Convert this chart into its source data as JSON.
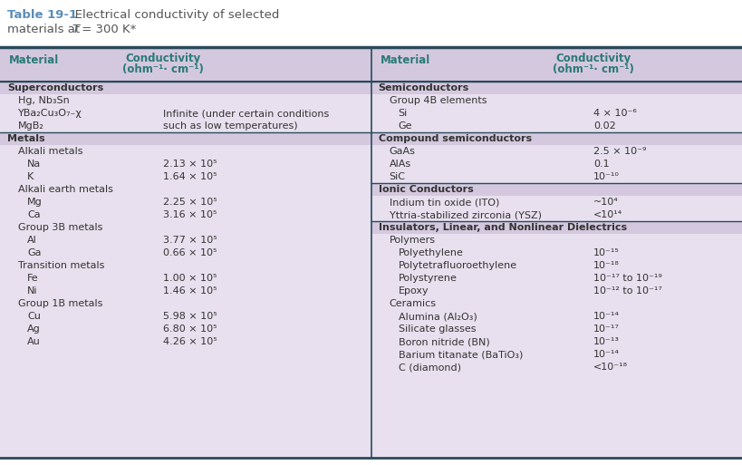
{
  "title_bold": "Table 19-1",
  "title_rest": "   Electrical conductivity of selected",
  "title_line2_pre": "materials at ",
  "title_italic": "T",
  "title_line2_post": " = 300 K*",
  "bg_color": "#e8e0ee",
  "header_bg": "#d4c8de",
  "section_header_bg": "#d4c8de",
  "row_bg": "#e8e0ee",
  "teal_color": "#2a7a78",
  "title_blue": "#5b8db8",
  "border_top_color": "#2a4a5a",
  "border_color": "#8a9aaa",
  "text_color": "#333333",
  "white_bg": "#ffffff",
  "left_col": {
    "header_material": "Material",
    "header_conductivity_line1": "Conductivity",
    "header_conductivity_line2": "(ohm⁻¹· cm⁻¹)",
    "sections": [
      {
        "name": "Superconductors",
        "entries": [
          {
            "material": "Hg, Nb₃Sn",
            "conductivity": "",
            "indent": 1,
            "cond_note": ""
          },
          {
            "material": "YBa₂Cu₃O₇₋χ",
            "conductivity": "Infinite (under certain conditions",
            "indent": 1
          },
          {
            "material": "MgB₂",
            "conductivity": "such as low temperatures)",
            "indent": 1
          }
        ]
      },
      {
        "name": "Metals",
        "entries": [
          {
            "material": "Alkali metals",
            "conductivity": "",
            "indent": 1
          },
          {
            "material": "Na",
            "conductivity": "2.13 × 10⁵",
            "indent": 2
          },
          {
            "material": "K",
            "conductivity": "1.64 × 10⁵",
            "indent": 2
          },
          {
            "material": "Alkali earth metals",
            "conductivity": "",
            "indent": 1
          },
          {
            "material": "Mg",
            "conductivity": "2.25 × 10⁵",
            "indent": 2
          },
          {
            "material": "Ca",
            "conductivity": "3.16 × 10⁵",
            "indent": 2
          },
          {
            "material": "Group 3B metals",
            "conductivity": "",
            "indent": 1
          },
          {
            "material": "Al",
            "conductivity": "3.77 × 10⁵",
            "indent": 2
          },
          {
            "material": "Ga",
            "conductivity": "0.66 × 10⁵",
            "indent": 2
          },
          {
            "material": "Transition metals",
            "conductivity": "",
            "indent": 1
          },
          {
            "material": "Fe",
            "conductivity": "1.00 × 10⁵",
            "indent": 2
          },
          {
            "material": "Ni",
            "conductivity": "1.46 × 10⁵",
            "indent": 2
          },
          {
            "material": "Group 1B metals",
            "conductivity": "",
            "indent": 1
          },
          {
            "material": "Cu",
            "conductivity": "5.98 × 10⁵",
            "indent": 2
          },
          {
            "material": "Ag",
            "conductivity": "6.80 × 10⁵",
            "indent": 2
          },
          {
            "material": "Au",
            "conductivity": "4.26 × 10⁵",
            "indent": 2
          }
        ]
      }
    ]
  },
  "right_col": {
    "header_material": "Material",
    "header_conductivity_line1": "Conductivity",
    "header_conductivity_line2": "(ohm⁻¹· cm⁻¹)",
    "sections": [
      {
        "name": "Semiconductors",
        "entries": [
          {
            "material": "Group 4B elements",
            "conductivity": "",
            "indent": 1
          },
          {
            "material": "Si",
            "conductivity": "4 × 10⁻⁶",
            "indent": 2
          },
          {
            "material": "Ge",
            "conductivity": "0.02",
            "indent": 2
          }
        ]
      },
      {
        "name": "Compound semiconductors",
        "entries": [
          {
            "material": "GaAs",
            "conductivity": "2.5 × 10⁻⁹",
            "indent": 1
          },
          {
            "material": "AlAs",
            "conductivity": "0.1",
            "indent": 1
          },
          {
            "material": "SiC",
            "conductivity": "10⁻¹⁰",
            "indent": 1
          }
        ]
      },
      {
        "name": "Ionic Conductors",
        "entries": [
          {
            "material": "Indium tin oxide (ITO)",
            "conductivity": "~10⁴",
            "indent": 1
          },
          {
            "material": "Yttria-stabilized zirconia (YSZ)",
            "conductivity": "<10¹⁴",
            "indent": 1
          }
        ]
      },
      {
        "name": "Insulators, Linear, and Nonlinear Dielectrics",
        "entries": [
          {
            "material": "Polymers",
            "conductivity": "",
            "indent": 1
          },
          {
            "material": "Polyethylene",
            "conductivity": "10⁻¹⁵",
            "indent": 2
          },
          {
            "material": "Polytetrafluoroethylene",
            "conductivity": "10⁻¹⁸",
            "indent": 2
          },
          {
            "material": "Polystyrene",
            "conductivity": "10⁻¹⁷ to 10⁻¹⁹",
            "indent": 2
          },
          {
            "material": "Epoxy",
            "conductivity": "10⁻¹² to 10⁻¹⁷",
            "indent": 2
          },
          {
            "material": "Ceramics",
            "conductivity": "",
            "indent": 1
          },
          {
            "material": "Alumina (Al₂O₃)",
            "conductivity": "10⁻¹⁴",
            "indent": 2
          },
          {
            "material": "Silicate glasses",
            "conductivity": "10⁻¹⁷",
            "indent": 2
          },
          {
            "material": "Boron nitride (BN)",
            "conductivity": "10⁻¹³",
            "indent": 2
          },
          {
            "material": "Barium titanate (BaTiO₃)",
            "conductivity": "10⁻¹⁴",
            "indent": 2
          },
          {
            "material": "C (diamond)",
            "conductivity": "<10⁻¹⁸",
            "indent": 2
          }
        ]
      }
    ]
  }
}
